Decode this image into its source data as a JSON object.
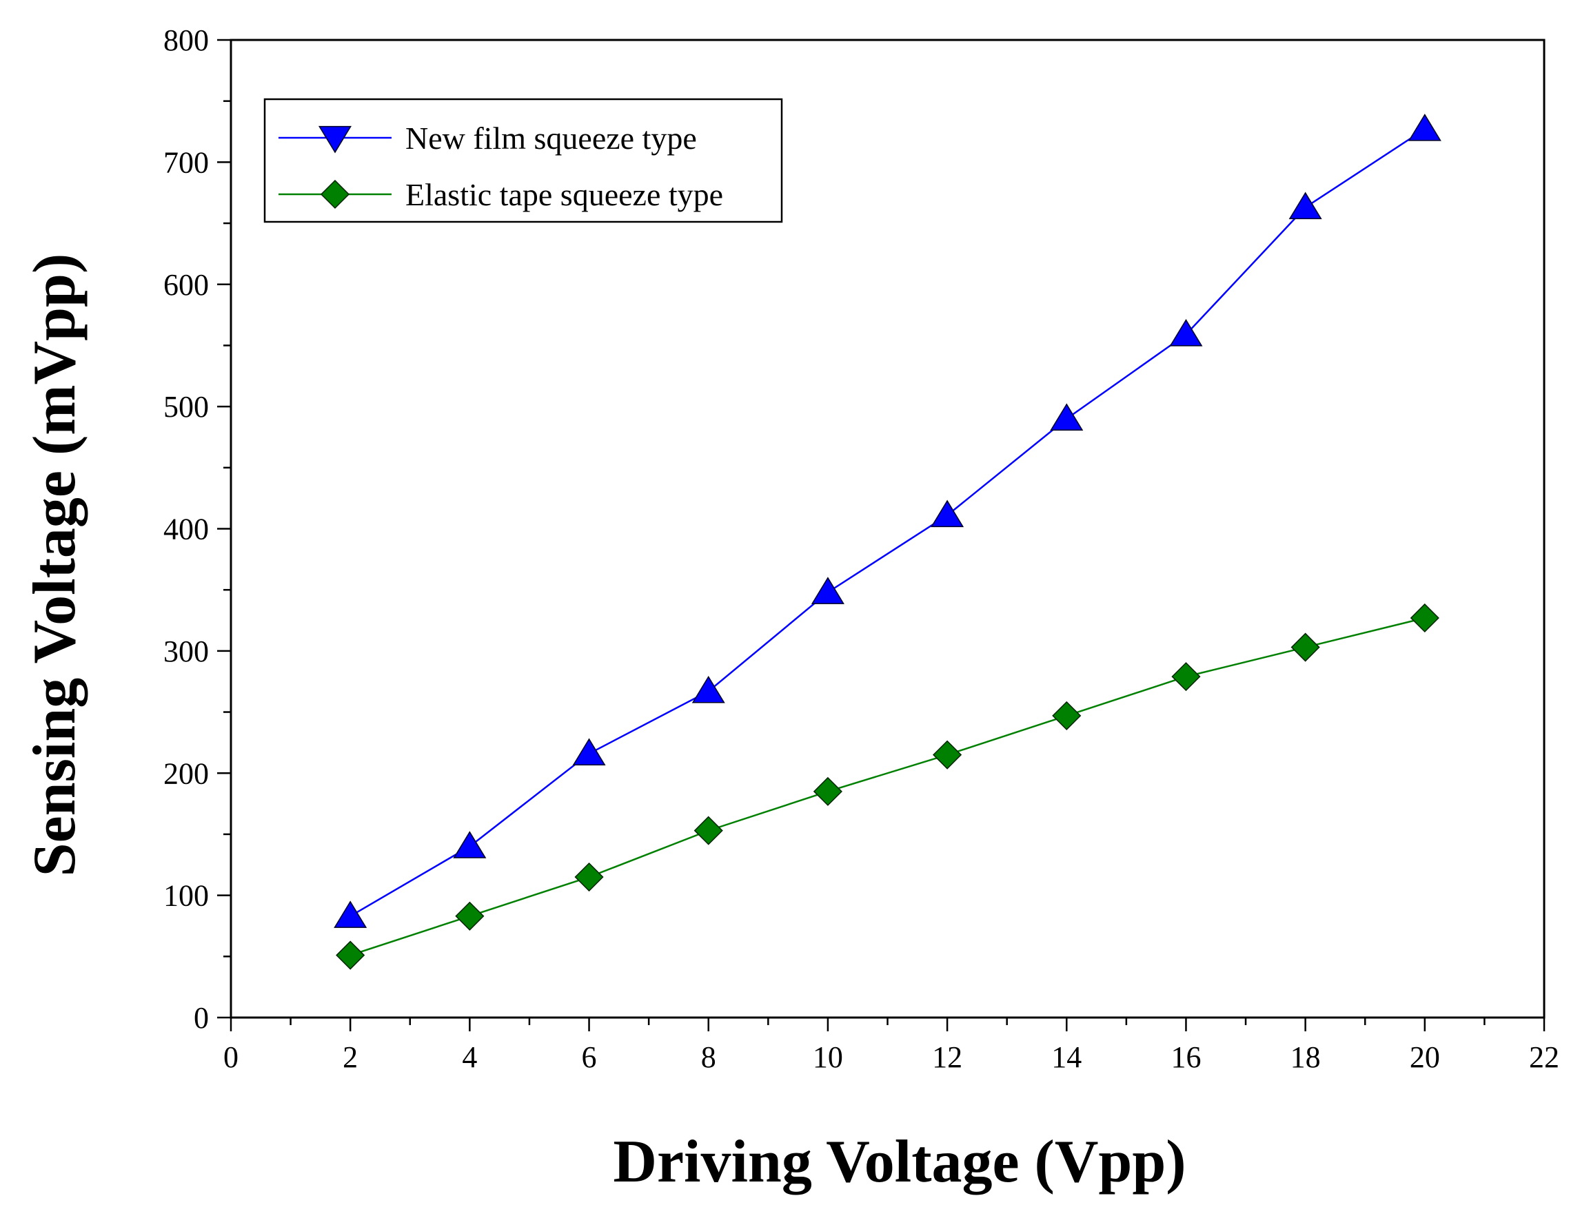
{
  "chart_data": {
    "type": "line",
    "title": "",
    "xlabel": "Driving Voltage (Vpp)",
    "ylabel": "Sensing Voltage (mVpp)",
    "xlim": [
      0,
      22
    ],
    "ylim": [
      0,
      800
    ],
    "xticks": [
      0,
      2,
      4,
      6,
      8,
      10,
      12,
      14,
      16,
      18,
      20,
      22
    ],
    "yticks": [
      0,
      100,
      200,
      300,
      400,
      500,
      600,
      700,
      800
    ],
    "grid": false,
    "legend_position": "top-left",
    "series": [
      {
        "name": "New film squeeze type",
        "color": "#0000ff",
        "marker": "triangle",
        "x": [
          2,
          4,
          6,
          8,
          10,
          12,
          14,
          16,
          18,
          20
        ],
        "values": [
          83,
          140,
          216,
          267,
          348,
          411,
          490,
          559,
          663,
          727
        ]
      },
      {
        "name": "Elastic tape squeeze type",
        "color": "#008000",
        "marker": "diamond",
        "x": [
          2,
          4,
          6,
          8,
          10,
          12,
          14,
          16,
          18,
          20
        ],
        "values": [
          51,
          83,
          115,
          153,
          185,
          215,
          247,
          279,
          303,
          327
        ]
      }
    ]
  }
}
